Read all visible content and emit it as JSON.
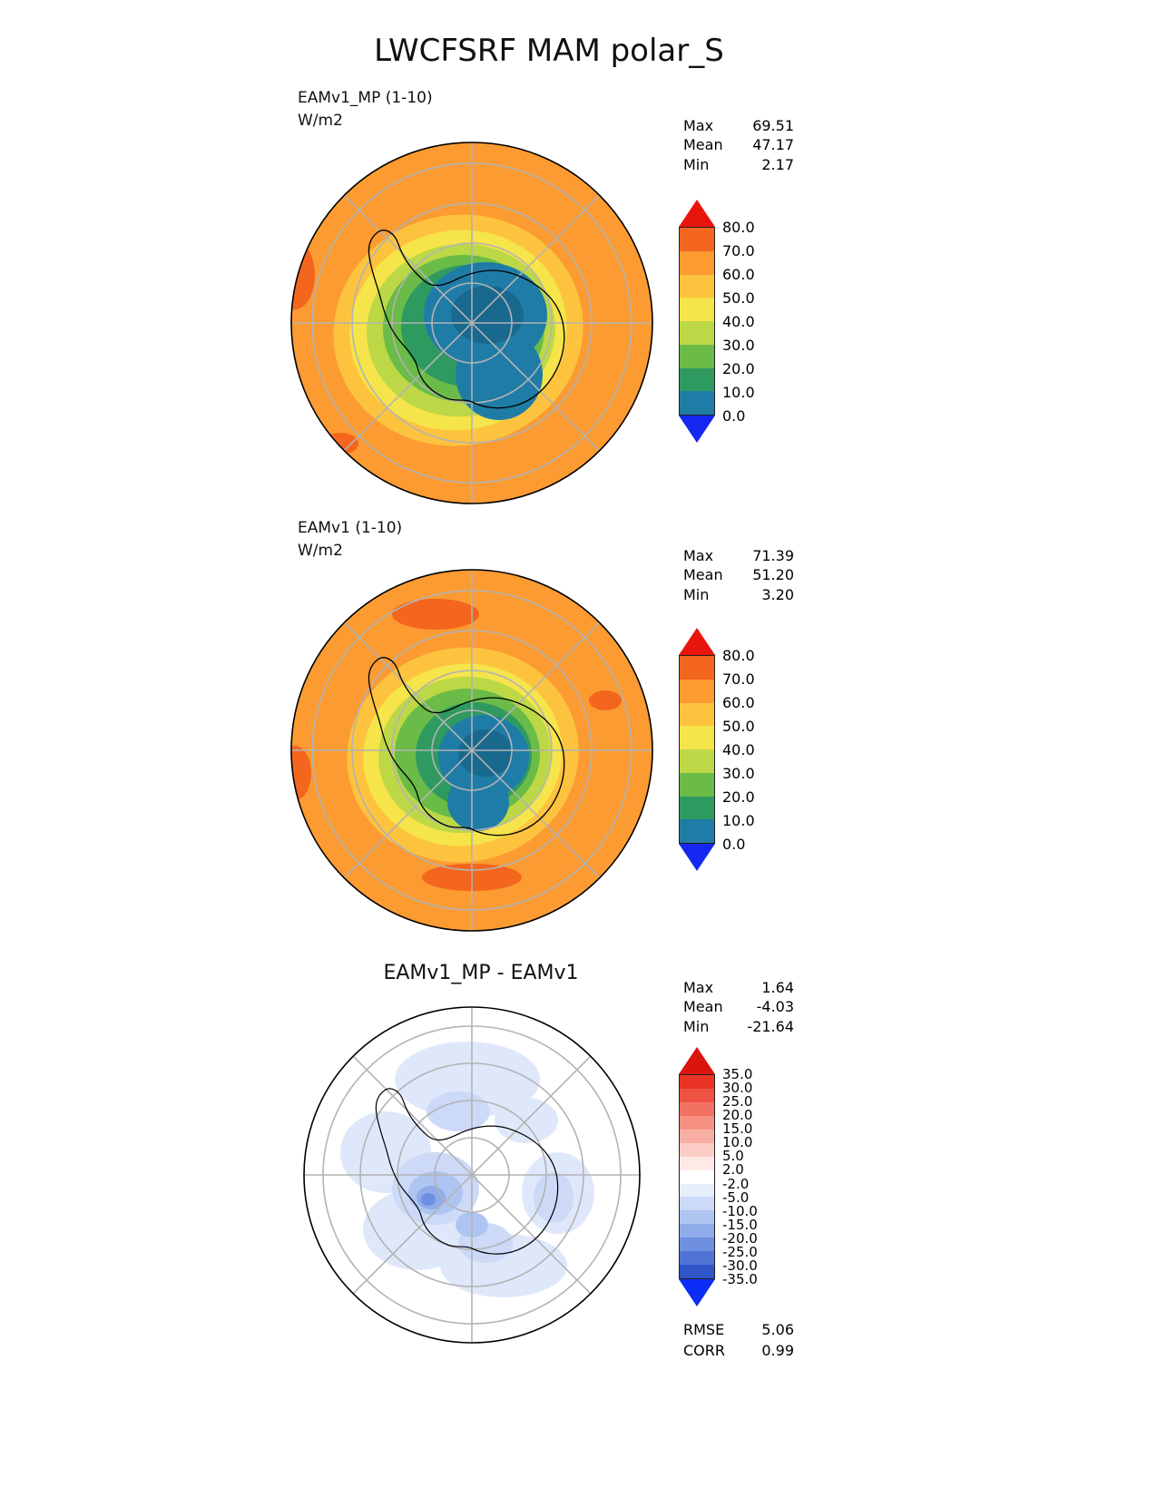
{
  "title": "LWCFSRF MAM polar_S",
  "panels": [
    {
      "label_line1": "EAMv1_MP (1-10)",
      "label_line2": "W/m2",
      "stats": [
        {
          "label": "Max",
          "value": "69.51"
        },
        {
          "label": "Mean",
          "value": "47.17"
        },
        {
          "label": "Min",
          "value": "2.17"
        }
      ],
      "colorbar": {
        "ticks": [
          "80.0",
          "70.0",
          "60.0",
          "50.0",
          "40.0",
          "30.0",
          "20.0",
          "10.0",
          "0.0"
        ],
        "over_color": "#e8150d",
        "under_color": "#1527f0",
        "segment_colors": [
          "#f4651e",
          "#fb9b32",
          "#fdc33e",
          "#f5e44a",
          "#bcd846",
          "#6abb47",
          "#2f9a60",
          "#1f7ca6"
        ]
      }
    },
    {
      "label_line1": "EAMv1 (1-10)",
      "label_line2": "W/m2",
      "stats": [
        {
          "label": "Max",
          "value": "71.39"
        },
        {
          "label": "Mean",
          "value": "51.20"
        },
        {
          "label": "Min",
          "value": "3.20"
        }
      ],
      "colorbar": {
        "ticks": [
          "80.0",
          "70.0",
          "60.0",
          "50.0",
          "40.0",
          "30.0",
          "20.0",
          "10.0",
          "0.0"
        ],
        "over_color": "#e8150d",
        "under_color": "#1527f0",
        "segment_colors": [
          "#f4651e",
          "#fb9b32",
          "#fdc33e",
          "#f5e44a",
          "#bcd846",
          "#6abb47",
          "#2f9a60",
          "#1f7ca6"
        ]
      }
    },
    {
      "title": "EAMv1_MP - EAMv1",
      "stats": [
        {
          "label": "Max",
          "value": "1.64"
        },
        {
          "label": "Mean",
          "value": "-4.03"
        },
        {
          "label": "Min",
          "value": "-21.64"
        }
      ],
      "colorbar": {
        "ticks": [
          "35.0",
          "30.0",
          "25.0",
          "20.0",
          "15.0",
          "10.0",
          "5.0",
          "2.0",
          "-2.0",
          "-5.0",
          "-10.0",
          "-15.0",
          "-20.0",
          "-25.0",
          "-30.0",
          "-35.0"
        ],
        "over_color": "#d9150c",
        "under_color": "#0b2df5",
        "segment_colors": [
          "#e93425",
          "#ee5243",
          "#f37163",
          "#f69083",
          "#f9aea4",
          "#fbccc5",
          "#fde9e6",
          "#ffffff",
          "#e7eefb",
          "#ccdaf7",
          "#aec4f1",
          "#8fabe9",
          "#6f90e0",
          "#4f74d5",
          "#2f55c7"
        ]
      },
      "metrics": [
        {
          "label": "RMSE",
          "value": "5.06"
        },
        {
          "label": "CORR",
          "value": "0.99"
        }
      ]
    }
  ],
  "chart_data": [
    {
      "type": "heatmap",
      "subtype": "polar_stereographic_contour_map_south",
      "title": "EAMv1_MP (1-10)",
      "units": "W/m2",
      "stats": {
        "max": 69.51,
        "mean": 47.17,
        "min": 2.17
      },
      "contour_levels": [
        0,
        10,
        20,
        30,
        40,
        50,
        60,
        70,
        80
      ],
      "colorbar_extend": "both",
      "description": "LWCFSRF MAM climatology over Antarctica; ~60-70 W/m2 over ocean (orange), decreasing to 0-10 W/m2 over East Antarctic plateau (blue)"
    },
    {
      "type": "heatmap",
      "subtype": "polar_stereographic_contour_map_south",
      "title": "EAMv1 (1-10)",
      "units": "W/m2",
      "stats": {
        "max": 71.39,
        "mean": 51.2,
        "min": 3.2
      },
      "contour_levels": [
        0,
        10,
        20,
        30,
        40,
        50,
        60,
        70,
        80
      ],
      "colorbar_extend": "both",
      "description": "Same field for EAMv1; includes small >70 W/m2 patches near map top and bottom edges"
    },
    {
      "type": "heatmap",
      "subtype": "polar_stereographic_contour_map_south",
      "title": "EAMv1_MP - EAMv1",
      "units": "W/m2",
      "stats": {
        "max": 1.64,
        "mean": -4.03,
        "min": -21.64,
        "rmse": 5.06,
        "corr": 0.99
      },
      "contour_levels": [
        -35,
        -30,
        -25,
        -20,
        -15,
        -10,
        -5,
        -2,
        2,
        5,
        10,
        15,
        20,
        25,
        30,
        35
      ],
      "colorbar_extend": "both",
      "description": "Difference map, mostly weak negative values (light blue), strongest negative (~-21) near West Antarctica left of pole"
    }
  ]
}
